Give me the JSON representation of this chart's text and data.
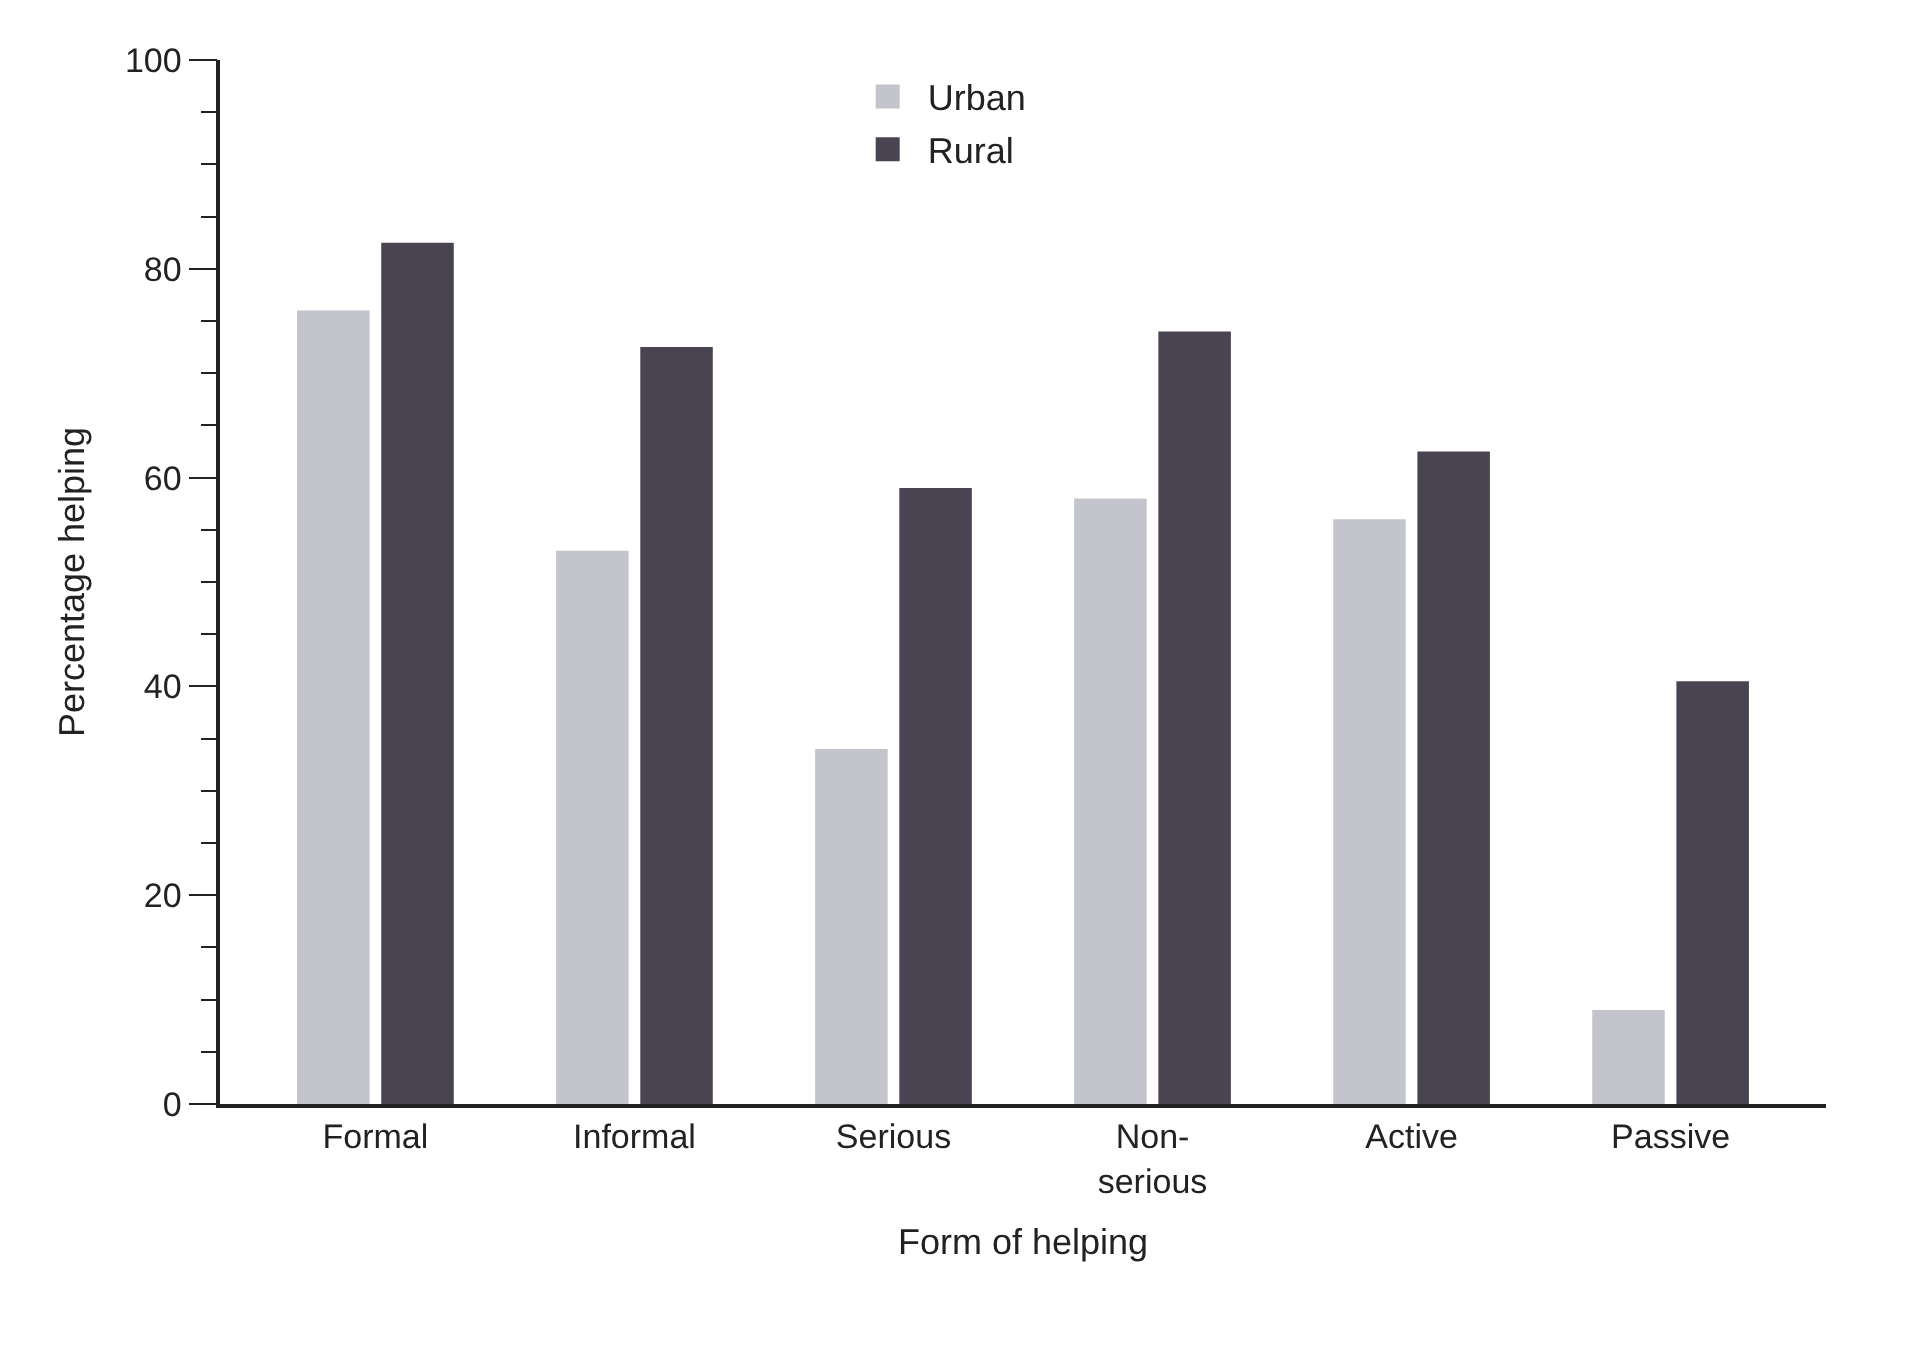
{
  "chart_data": {
    "type": "bar",
    "xlabel": "Form of helping",
    "ylabel": "Percentage helping",
    "categories": [
      "Formal",
      "Informal",
      "Serious",
      "Non-\nserious",
      "Active",
      "Passive"
    ],
    "series": [
      {
        "name": "Urban",
        "color": "#c4c4cc",
        "values": [
          76,
          53,
          34,
          58,
          56,
          9
        ]
      },
      {
        "name": "Rural",
        "color": "#4a4452",
        "values": [
          82.5,
          72.5,
          59,
          74,
          62.5,
          40.5
        ]
      }
    ],
    "ylim": [
      0,
      100
    ],
    "yticks": [
      0,
      20,
      40,
      60,
      80,
      100
    ],
    "legend": "top"
  }
}
